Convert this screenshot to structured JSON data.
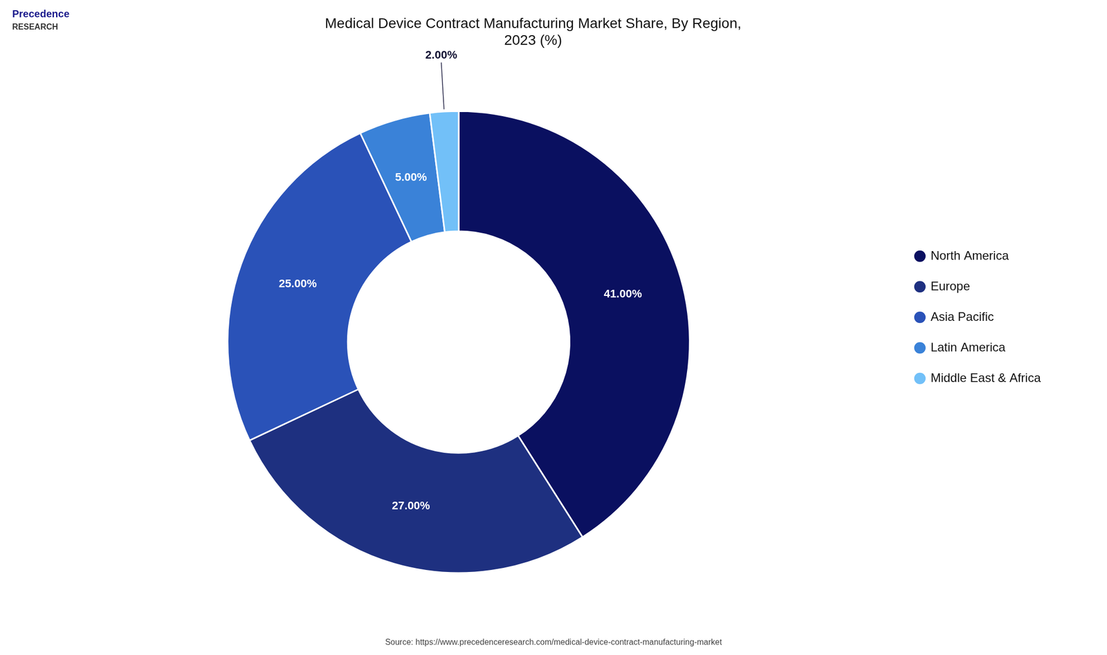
{
  "chart_data": {
    "type": "doughnut",
    "title": "Medical Device Contract Manufacturing Market Share, By Region,\n2023 (%)",
    "categories": [
      "North America",
      "Europe",
      "Asia Pacific",
      "Latin America",
      "Middle East & Africa"
    ],
    "values": [
      41,
      27,
      25,
      5,
      2
    ],
    "value_labels": [
      "41.00%",
      "27.00%",
      "25.00%",
      "5.00%",
      "2.00%"
    ],
    "colors": [
      "#0a1060",
      "#1e3080",
      "#2a52b8",
      "#3a82d8",
      "#72c0f8"
    ],
    "data_labels": true,
    "legend": "right",
    "annotations": [
      "Precedence",
      "RESEARCH",
      "Source: https://www.precedenceresearch.com/medical-device-contract-manufacturing-market"
    ]
  }
}
